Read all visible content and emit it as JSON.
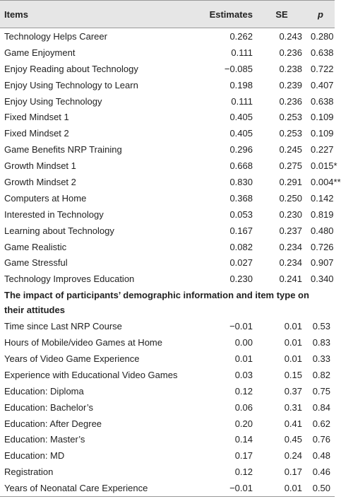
{
  "table": {
    "header": [
      "Items",
      "Estimates",
      "SE",
      "p"
    ],
    "sections": [
      {
        "rows": [
          [
            "Technology Helps Career",
            "0.262",
            "0.243",
            "0.280"
          ],
          [
            "Game Enjoyment",
            "0.111",
            "0.236",
            "0.638"
          ],
          [
            "Enjoy Reading about Technology",
            "−0.085",
            "0.238",
            "0.722"
          ],
          [
            "Enjoy Using Technology to Learn",
            "0.198",
            "0.239",
            "0.407"
          ],
          [
            "Enjoy Using Technology",
            "0.111",
            "0.236",
            "0.638"
          ],
          [
            "Fixed Mindset 1",
            "0.405",
            "0.253",
            "0.109"
          ],
          [
            "Fixed Mindset 2",
            "0.405",
            "0.253",
            "0.109"
          ],
          [
            "Game Benefits NRP Training",
            "0.296",
            "0.245",
            "0.227"
          ],
          [
            "Growth Mindset 1",
            "0.668",
            "0.275",
            "0.015*"
          ],
          [
            "Growth Mindset 2",
            "0.830",
            "0.291",
            "0.004**"
          ],
          [
            "Computers at Home",
            "0.368",
            "0.250",
            "0.142"
          ],
          [
            "Interested in Technology",
            "0.053",
            "0.230",
            "0.819"
          ],
          [
            "Learning about Technology",
            "0.167",
            "0.237",
            "0.480"
          ],
          [
            "Game Realistic",
            "0.082",
            "0.234",
            "0.726"
          ],
          [
            "Game Stressful",
            "0.027",
            "0.234",
            "0.907"
          ],
          [
            "Technology Improves Education",
            "0.230",
            "0.241",
            "0.340"
          ]
        ]
      },
      {
        "title": "The impact of participants’ demographic information and item type on their attitudes",
        "rows": [
          [
            "Time since Last NRP Course",
            "−0.01",
            "0.01",
            "0.53"
          ],
          [
            "Hours of Mobile/video Games at Home",
            "0.00",
            "0.01",
            "0.83"
          ],
          [
            "Years of Video Game Experience",
            "0.01",
            "0.01",
            "0.33"
          ],
          [
            "Experience with Educational Video Games",
            "0.03",
            "0.15",
            "0.82"
          ],
          [
            "Education: Diploma",
            "0.12",
            "0.37",
            "0.75"
          ],
          [
            "Education: Bachelor’s",
            "0.06",
            "0.31",
            "0.84"
          ],
          [
            "Education: After Degree",
            "0.20",
            "0.41",
            "0.62"
          ],
          [
            "Education: Master’s",
            "0.14",
            "0.45",
            "0.76"
          ],
          [
            "Education: MD",
            "0.17",
            "0.24",
            "0.48"
          ],
          [
            "Registration",
            "0.12",
            "0.17",
            "0.46"
          ],
          [
            "Years of Neonatal Care Experience",
            "−0.01",
            "0.01",
            "0.50"
          ]
        ]
      }
    ]
  }
}
